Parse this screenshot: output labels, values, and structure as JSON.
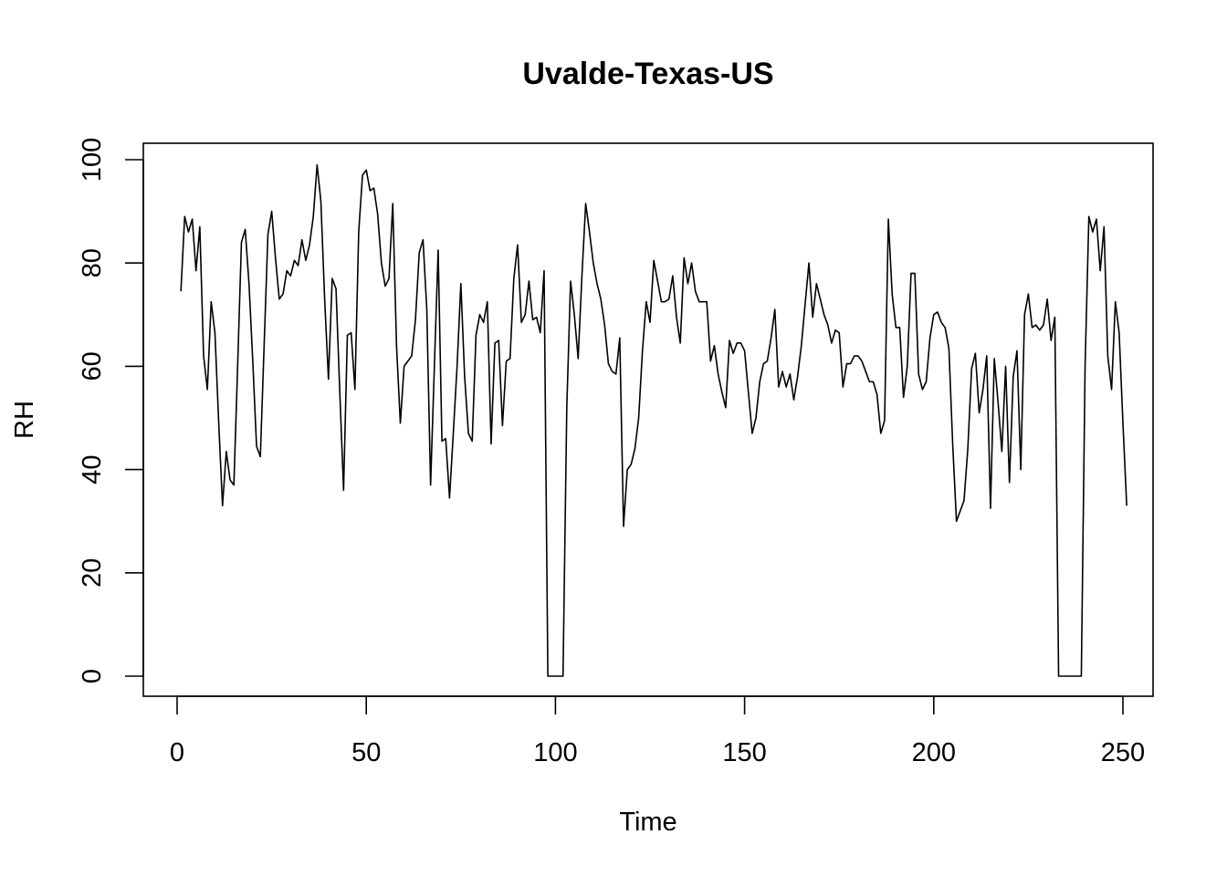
{
  "chart_data": {
    "type": "line",
    "title": "Uvalde-Texas-US",
    "xlabel": "Time",
    "ylabel": "RH",
    "xlim": [
      1,
      248
    ],
    "ylim": [
      0,
      99
    ],
    "x_ticks": [
      0,
      50,
      100,
      150,
      200,
      250
    ],
    "y_ticks": [
      0,
      20,
      40,
      60,
      80,
      100
    ],
    "grid": false,
    "line_color": "#000000",
    "series": [
      {
        "values": [
          74.5,
          89,
          86,
          88.5,
          78.5,
          87,
          62,
          55.5,
          72.5,
          66.5,
          49,
          33,
          43.5,
          38,
          37,
          60,
          84,
          86.5,
          76,
          61,
          44.5,
          42.5,
          64,
          85.5,
          90,
          81,
          73,
          74,
          78.5,
          77.5,
          80.5,
          79.5,
          84.5,
          80.5,
          83.5,
          89,
          99,
          92,
          73,
          57.5,
          77,
          75,
          55,
          36,
          66,
          66.5,
          55.5,
          86,
          97,
          98,
          94,
          94.5,
          89.5,
          80,
          75.5,
          77,
          91.5,
          64,
          49,
          60,
          61,
          62,
          69,
          82,
          84.5,
          71,
          37,
          60,
          82.5,
          45.5,
          46,
          34.5,
          47,
          60,
          76,
          58,
          47,
          45.5,
          66,
          70,
          68.5,
          72.5,
          45,
          64.5,
          65,
          48.5,
          61,
          61.5,
          77,
          83.5,
          68.5,
          70,
          76.5,
          69,
          69.5,
          66.5,
          78.5,
          0,
          0,
          0,
          0,
          0,
          52,
          76.5,
          70,
          61.5,
          77.5,
          91.5,
          86,
          80,
          76,
          73,
          68,
          60.5,
          59,
          58.5,
          65.5,
          29,
          40,
          41,
          44,
          50,
          63,
          72.5,
          68.5,
          80.5,
          76.5,
          72.5,
          72.5,
          73,
          77.5,
          69.5,
          64.5,
          81,
          76,
          80,
          74.5,
          72.5,
          72.5,
          72.5,
          61,
          64,
          58.5,
          55,
          52,
          65,
          62.5,
          64.5,
          64.5,
          63,
          55,
          47,
          50,
          57,
          60.5,
          61,
          65.5,
          71,
          56,
          59,
          56,
          58.5,
          53.5,
          58,
          64,
          72,
          80,
          69.5,
          76,
          73,
          70,
          68,
          64.5,
          67,
          66.5,
          56,
          60.5,
          60.5,
          62,
          62,
          61,
          59,
          57,
          57,
          54.5,
          47,
          49.5,
          88.5,
          74,
          67.5,
          67.5,
          54,
          60,
          78,
          78,
          58.5,
          55.5,
          57,
          65.5,
          70,
          70.5,
          68.5,
          67.5,
          63.5,
          45,
          30,
          32,
          34,
          44,
          59.5,
          62.5,
          51,
          55.5,
          62,
          32.5,
          61.5,
          53,
          43.5,
          60,
          37.5,
          58,
          63,
          40,
          70,
          74,
          67.5,
          68,
          67,
          68,
          73,
          65,
          69.5,
          0,
          0,
          0,
          0,
          0,
          0,
          0,
          60,
          89,
          86,
          88.5,
          78.5,
          87,
          62,
          55.5,
          72.5,
          66.5,
          49,
          33
        ]
      }
    ]
  }
}
